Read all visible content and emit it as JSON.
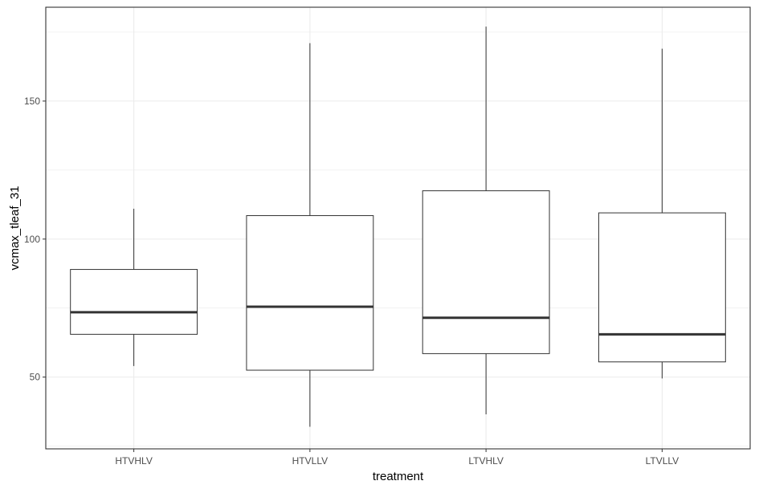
{
  "chart_data": {
    "type": "boxplot",
    "title": "",
    "xlabel": "treatment",
    "ylabel": "vcmax_tleaf_31",
    "ylim": [
      24,
      184
    ],
    "yticks": [
      50,
      100,
      150
    ],
    "grid": true,
    "categories": [
      "HTVHLV",
      "HTVLLV",
      "LTVHLV",
      "LTVLLV"
    ],
    "boxes": [
      {
        "category": "HTVHLV",
        "whisker_low": 54,
        "q1": 65.5,
        "median": 73.5,
        "q3": 89,
        "whisker_high": 111
      },
      {
        "category": "HTVLLV",
        "whisker_low": 32,
        "q1": 52.5,
        "median": 75.5,
        "q3": 108.5,
        "whisker_high": 171
      },
      {
        "category": "LTVHLV",
        "whisker_low": 36.5,
        "q1": 58.5,
        "median": 71.5,
        "q3": 117.5,
        "whisker_high": 177
      },
      {
        "category": "LTVLLV",
        "whisker_low": 49.5,
        "q1": 55.5,
        "median": 65.5,
        "q3": 109.5,
        "whisker_high": 169
      }
    ],
    "colors": {
      "panel_border": "#333333",
      "grid": "#ebebeb",
      "box_line": "#333333",
      "median": "#333333",
      "fill": "#ffffff"
    }
  }
}
